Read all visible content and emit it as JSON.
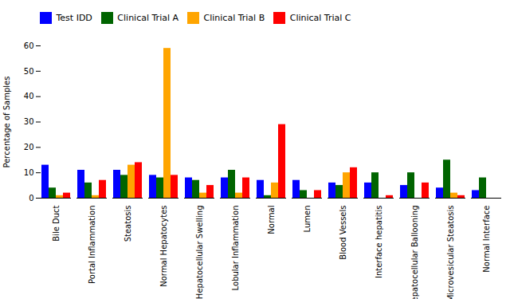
{
  "chart_data": {
    "type": "bar",
    "categories": [
      "Bile Duct",
      "Portal Inflammation",
      "Steatosis",
      "Normal Hepatocytes",
      "Hepatocellular Swelling",
      "Lobular Inflammation",
      "Normal",
      "Lumen",
      "Blood Vessels",
      "Interface hepatitis",
      "Hepatocellular Ballooning",
      "Microvesicular Steatosis",
      "Normal Interface"
    ],
    "series": [
      {
        "name": "Test IDD",
        "color": "#0000FF",
        "values": [
          13,
          11,
          11,
          9,
          8,
          8,
          7,
          7,
          6,
          6,
          5,
          4,
          3
        ]
      },
      {
        "name": "Clinical Trial A",
        "color": "#006400",
        "values": [
          4,
          6,
          9,
          8,
          7,
          11,
          1,
          3,
          5,
          10,
          10,
          15,
          8
        ]
      },
      {
        "name": "Clinical Trial B",
        "color": "#FFA500",
        "values": [
          1,
          1,
          13,
          59,
          2,
          2,
          6,
          0,
          10,
          0,
          0,
          2,
          0
        ]
      },
      {
        "name": "Clinical Trial C",
        "color": "#FF0000",
        "values": [
          2,
          7,
          14,
          9,
          5,
          8,
          29,
          3,
          12,
          1,
          6,
          1,
          0
        ]
      }
    ],
    "ylabel": "Percentage of Samples",
    "ylim": [
      0,
      60
    ],
    "yticks": [
      0,
      10,
      20,
      30,
      40,
      50,
      60
    ],
    "grid": false,
    "legend": "upper left"
  }
}
